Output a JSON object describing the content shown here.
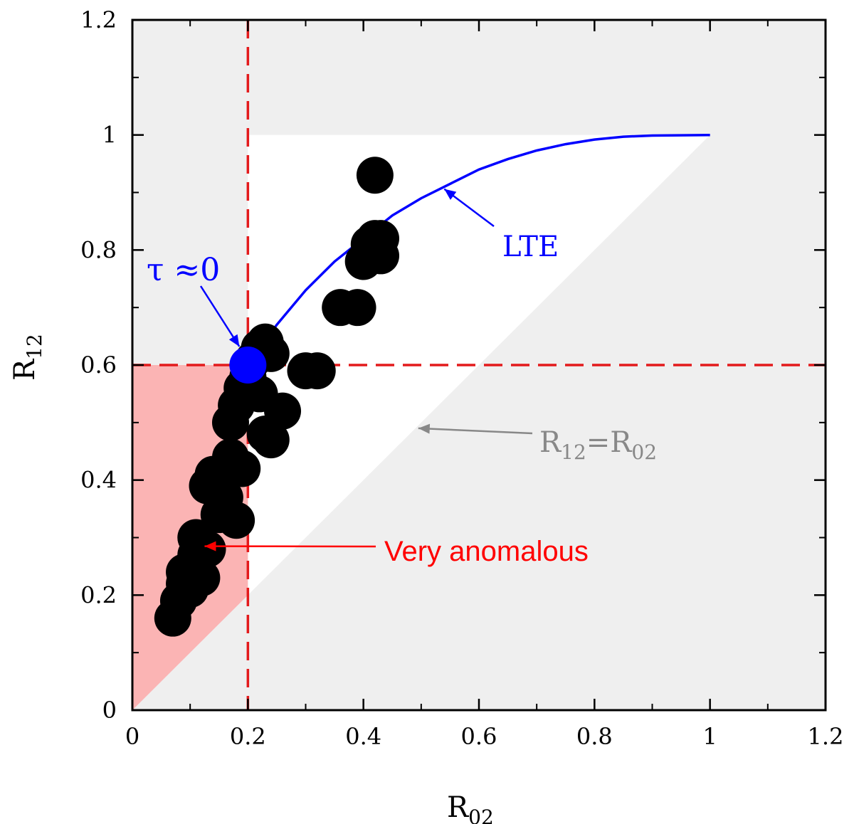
{
  "chart_data": {
    "type": "scatter",
    "xlabel": "R",
    "xlabel_sub": "02",
    "ylabel": "R",
    "ylabel_sub": "12",
    "xlim": [
      0,
      1.2
    ],
    "ylim": [
      0,
      1.2
    ],
    "xticks": [
      0,
      0.2,
      0.4,
      0.6,
      0.8,
      1,
      1.2
    ],
    "yticks": [
      0,
      0.2,
      0.4,
      0.6,
      0.8,
      1,
      1.2
    ],
    "xtick_labels": [
      "0",
      "0.2",
      "0.4",
      "0.6",
      "0.8",
      "1",
      "1.2"
    ],
    "ytick_labels": [
      "0",
      "0.2",
      "0.4",
      "0.6",
      "0.8",
      "1",
      "1.2"
    ],
    "points": [
      {
        "x": 0.07,
        "y": 0.16
      },
      {
        "x": 0.08,
        "y": 0.19
      },
      {
        "x": 0.09,
        "y": 0.22
      },
      {
        "x": 0.1,
        "y": 0.21
      },
      {
        "x": 0.09,
        "y": 0.24
      },
      {
        "x": 0.11,
        "y": 0.27
      },
      {
        "x": 0.12,
        "y": 0.23
      },
      {
        "x": 0.11,
        "y": 0.3
      },
      {
        "x": 0.13,
        "y": 0.28
      },
      {
        "x": 0.13,
        "y": 0.39
      },
      {
        "x": 0.14,
        "y": 0.41
      },
      {
        "x": 0.15,
        "y": 0.34
      },
      {
        "x": 0.18,
        "y": 0.33
      },
      {
        "x": 0.16,
        "y": 0.37
      },
      {
        "x": 0.17,
        "y": 0.44
      },
      {
        "x": 0.19,
        "y": 0.42
      },
      {
        "x": 0.17,
        "y": 0.5
      },
      {
        "x": 0.18,
        "y": 0.53
      },
      {
        "x": 0.19,
        "y": 0.56
      },
      {
        "x": 0.2,
        "y": 0.58
      },
      {
        "x": 0.21,
        "y": 0.61
      },
      {
        "x": 0.22,
        "y": 0.63
      },
      {
        "x": 0.23,
        "y": 0.64
      },
      {
        "x": 0.24,
        "y": 0.62
      },
      {
        "x": 0.22,
        "y": 0.55
      },
      {
        "x": 0.23,
        "y": 0.48
      },
      {
        "x": 0.24,
        "y": 0.47
      },
      {
        "x": 0.26,
        "y": 0.52
      },
      {
        "x": 0.3,
        "y": 0.59
      },
      {
        "x": 0.32,
        "y": 0.59
      },
      {
        "x": 0.36,
        "y": 0.7
      },
      {
        "x": 0.39,
        "y": 0.7
      },
      {
        "x": 0.4,
        "y": 0.78
      },
      {
        "x": 0.41,
        "y": 0.81
      },
      {
        "x": 0.42,
        "y": 0.82
      },
      {
        "x": 0.43,
        "y": 0.82
      },
      {
        "x": 0.43,
        "y": 0.79
      },
      {
        "x": 0.42,
        "y": 0.93
      }
    ],
    "lte_curve": [
      {
        "x": 0.2,
        "y": 0.6
      },
      {
        "x": 0.25,
        "y": 0.67
      },
      {
        "x": 0.3,
        "y": 0.73
      },
      {
        "x": 0.35,
        "y": 0.78
      },
      {
        "x": 0.4,
        "y": 0.82
      },
      {
        "x": 0.45,
        "y": 0.86
      },
      {
        "x": 0.5,
        "y": 0.89
      },
      {
        "x": 0.55,
        "y": 0.915
      },
      {
        "x": 0.6,
        "y": 0.94
      },
      {
        "x": 0.65,
        "y": 0.958
      },
      {
        "x": 0.7,
        "y": 0.973
      },
      {
        "x": 0.75,
        "y": 0.984
      },
      {
        "x": 0.8,
        "y": 0.992
      },
      {
        "x": 0.85,
        "y": 0.997
      },
      {
        "x": 0.9,
        "y": 0.999
      },
      {
        "x": 1.0,
        "y": 1.0
      }
    ],
    "tau_point": {
      "x": 0.2,
      "y": 0.6
    },
    "reference_lines": {
      "x": 0.2,
      "y": 0.6
    },
    "annotations": {
      "lte": "LTE",
      "tau": "τ ≈0",
      "equality": "R",
      "equality_sub_left": "12",
      "equality_eq": "=R",
      "equality_sub_right": "02",
      "very_anomalous": "Very anomalous"
    },
    "colors": {
      "gray_region": "#efefef",
      "anomalous_region": "#fbb4b4",
      "points": "#000000",
      "lte_curve": "#0000ff",
      "tau_point": "#0000ff",
      "reference_lines": "#e31a1c",
      "equality_text": "#888888",
      "very_anomalous_text": "#ff0000"
    }
  }
}
